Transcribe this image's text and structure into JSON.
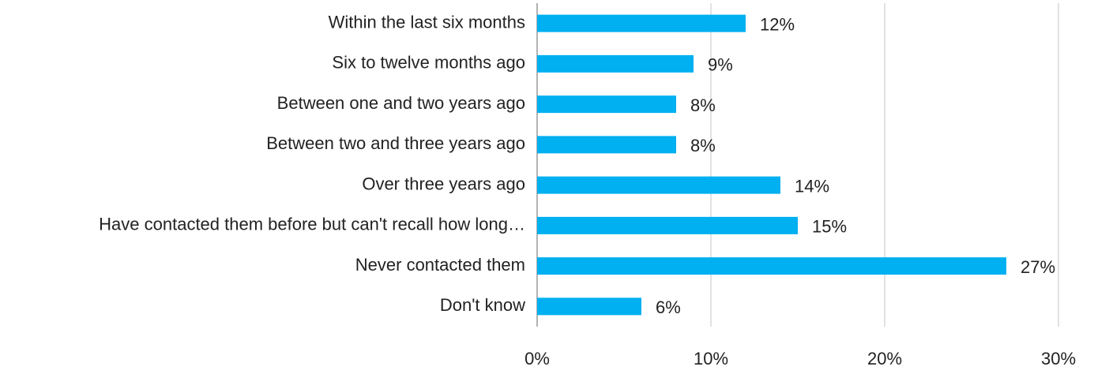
{
  "chart_data": {
    "type": "bar",
    "orientation": "horizontal",
    "categories": [
      "Within the last six months",
      "Six to twelve months ago",
      "Between one and two years ago",
      "Between two and three years ago",
      "Over three years ago",
      "Have contacted them before but can't recall how long…",
      "Never contacted them",
      "Don't know"
    ],
    "values": [
      12,
      9,
      8,
      8,
      14,
      15,
      27,
      6
    ],
    "value_labels": [
      "12%",
      "9%",
      "8%",
      "8%",
      "14%",
      "15%",
      "27%",
      "6%"
    ],
    "color": "#00b0f0",
    "xlim": [
      0,
      30
    ],
    "xticks": [
      {
        "value": 0,
        "label": "0%"
      },
      {
        "value": 10,
        "label": "10%"
      },
      {
        "value": 20,
        "label": "20%"
      },
      {
        "value": 30,
        "label": "30%"
      }
    ],
    "grid": true
  }
}
